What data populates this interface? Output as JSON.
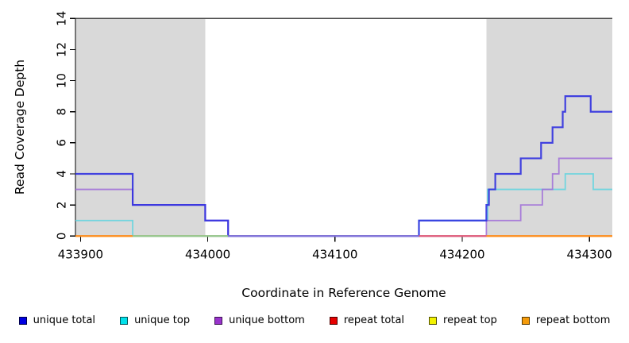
{
  "chart_data": {
    "type": "line",
    "subtype": "step",
    "title": "",
    "xlabel": "Coordinate in Reference Genome",
    "ylabel": "Read Coverage Depth",
    "xlim": [
      433896,
      434318
    ],
    "ylim": [
      0,
      14
    ],
    "x_ticks": [
      433900,
      434000,
      434100,
      434200,
      434300
    ],
    "y_ticks": [
      0,
      2,
      4,
      6,
      8,
      10,
      12,
      14
    ],
    "grid": "off",
    "legend_position": "bottom",
    "shaded_regions": [
      {
        "x0": 433896,
        "x1": 433998,
        "color": "#d9d9d9"
      },
      {
        "x0": 434219,
        "x1": 434318,
        "color": "#d9d9d9"
      }
    ],
    "series": [
      {
        "name": "unique total",
        "color": "#2b2bdf",
        "width": 2.2,
        "opacity": 0.88,
        "z": 6,
        "steps": [
          [
            433896,
            4
          ],
          [
            433941,
            2
          ],
          [
            433998,
            1
          ],
          [
            434016,
            0
          ],
          [
            434166,
            1
          ],
          [
            434219,
            2
          ],
          [
            434221,
            3
          ],
          [
            434226,
            4
          ],
          [
            434246,
            5
          ],
          [
            434262,
            6
          ],
          [
            434271,
            7
          ],
          [
            434279,
            8
          ],
          [
            434281,
            9
          ],
          [
            434301,
            8
          ]
        ]
      },
      {
        "name": "unique top",
        "color": "#5fd4de",
        "width": 1.8,
        "opacity": 0.85,
        "z": 4,
        "steps": [
          [
            433896,
            1
          ],
          [
            433941,
            0
          ],
          [
            434166,
            1
          ],
          [
            434220,
            3
          ],
          [
            434281,
            4
          ],
          [
            434303,
            3
          ]
        ]
      },
      {
        "name": "unique bottom",
        "color": "#9f6cd8",
        "width": 1.8,
        "opacity": 0.85,
        "z": 5,
        "steps": [
          [
            433896,
            3
          ],
          [
            433941,
            2
          ],
          [
            433998,
            1
          ],
          [
            434016,
            0
          ],
          [
            434219,
            1
          ],
          [
            434246,
            2
          ],
          [
            434263,
            3
          ],
          [
            434271,
            4
          ],
          [
            434276,
            5
          ]
        ]
      },
      {
        "name": "repeat total",
        "color": "#cc2222",
        "width": 1.8,
        "opacity": 0.85,
        "z": 1,
        "steps": [
          [
            433896,
            0
          ]
        ]
      },
      {
        "name": "repeat top",
        "color": "#e8e83a",
        "width": 1.8,
        "opacity": 0.85,
        "z": 2,
        "steps": [
          [
            433896,
            0
          ]
        ]
      },
      {
        "name": "repeat bottom",
        "color": "#ff8c1a",
        "width": 1.8,
        "opacity": 0.95,
        "z": 3,
        "steps": [
          [
            433896,
            0
          ]
        ]
      }
    ],
    "baseline_segments": [
      {
        "x0": 433896,
        "x1": 433941,
        "color": "#ff8c1a"
      },
      {
        "x0": 433941,
        "x1": 434016,
        "color": "#90c98f"
      },
      {
        "x0": 434016,
        "x1": 434166,
        "color": "#8274dc"
      },
      {
        "x0": 434166,
        "x1": 434219,
        "color": "#e0557d"
      },
      {
        "x0": 434219,
        "x1": 434318,
        "color": "#ff8c1a"
      }
    ],
    "legend": [
      {
        "label": "unique total",
        "fill": "#0000e1",
        "border": "#00004d"
      },
      {
        "label": "unique top",
        "fill": "#00e0ea",
        "border": "#00555a"
      },
      {
        "label": "unique bottom",
        "fill": "#9933cc",
        "border": "#3d1452"
      },
      {
        "label": "repeat total",
        "fill": "#e60000",
        "border": "#4d0000"
      },
      {
        "label": "repeat top",
        "fill": "#f2f200",
        "border": "#4d4d00"
      },
      {
        "label": "repeat bottom",
        "fill": "#f59b0a",
        "border": "#5a3a00"
      }
    ]
  }
}
